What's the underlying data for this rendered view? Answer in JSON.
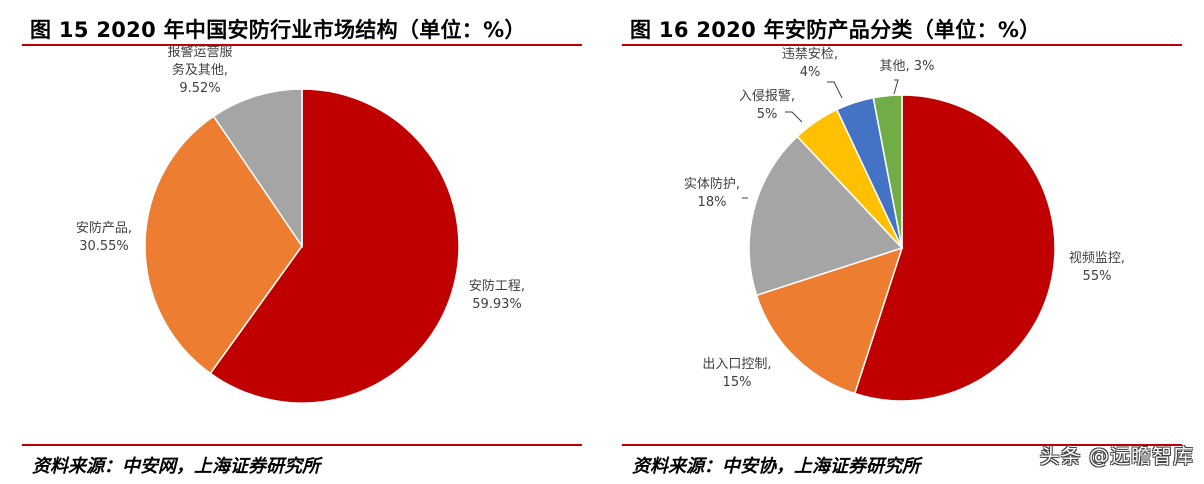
{
  "chart_data": [
    {
      "type": "pie",
      "title": "图 15 2020 年中国安防行业市场结构（单位：%）",
      "source": "资料来源：中安网，上海证券研究所",
      "slices": [
        {
          "label": [
            "安防工程,",
            "59.93%"
          ],
          "value": 59.93,
          "color": "#c00000"
        },
        {
          "label": [
            "安防产品,",
            "30.55%"
          ],
          "value": 30.55,
          "color": "#ed7d31"
        },
        {
          "label": [
            "报警运营服",
            "务及其他,",
            "9.52%"
          ],
          "value": 9.52,
          "color": "#a5a5a5"
        }
      ]
    },
    {
      "type": "pie",
      "title": "图 16 2020 年安防产品分类（单位：%）",
      "source": "资料来源：中安协，上海证券研究所",
      "slices": [
        {
          "label": [
            "视频监控,",
            "55%"
          ],
          "value": 55,
          "color": "#c00000"
        },
        {
          "label": [
            "出入口控制,",
            "15%"
          ],
          "value": 15,
          "color": "#ed7d31"
        },
        {
          "label": [
            "实体防护,",
            "18%"
          ],
          "value": 18,
          "color": "#a5a5a5"
        },
        {
          "label": [
            "入侵报警,",
            "5%"
          ],
          "value": 5,
          "color": "#ffc000"
        },
        {
          "label": [
            "违禁安检,",
            "4%"
          ],
          "value": 4,
          "color": "#4472c4"
        },
        {
          "label": [
            "其他, 3%"
          ],
          "value": 3,
          "color": "#70ad47"
        }
      ]
    }
  ],
  "watermark": "头条 @远瞻智库"
}
